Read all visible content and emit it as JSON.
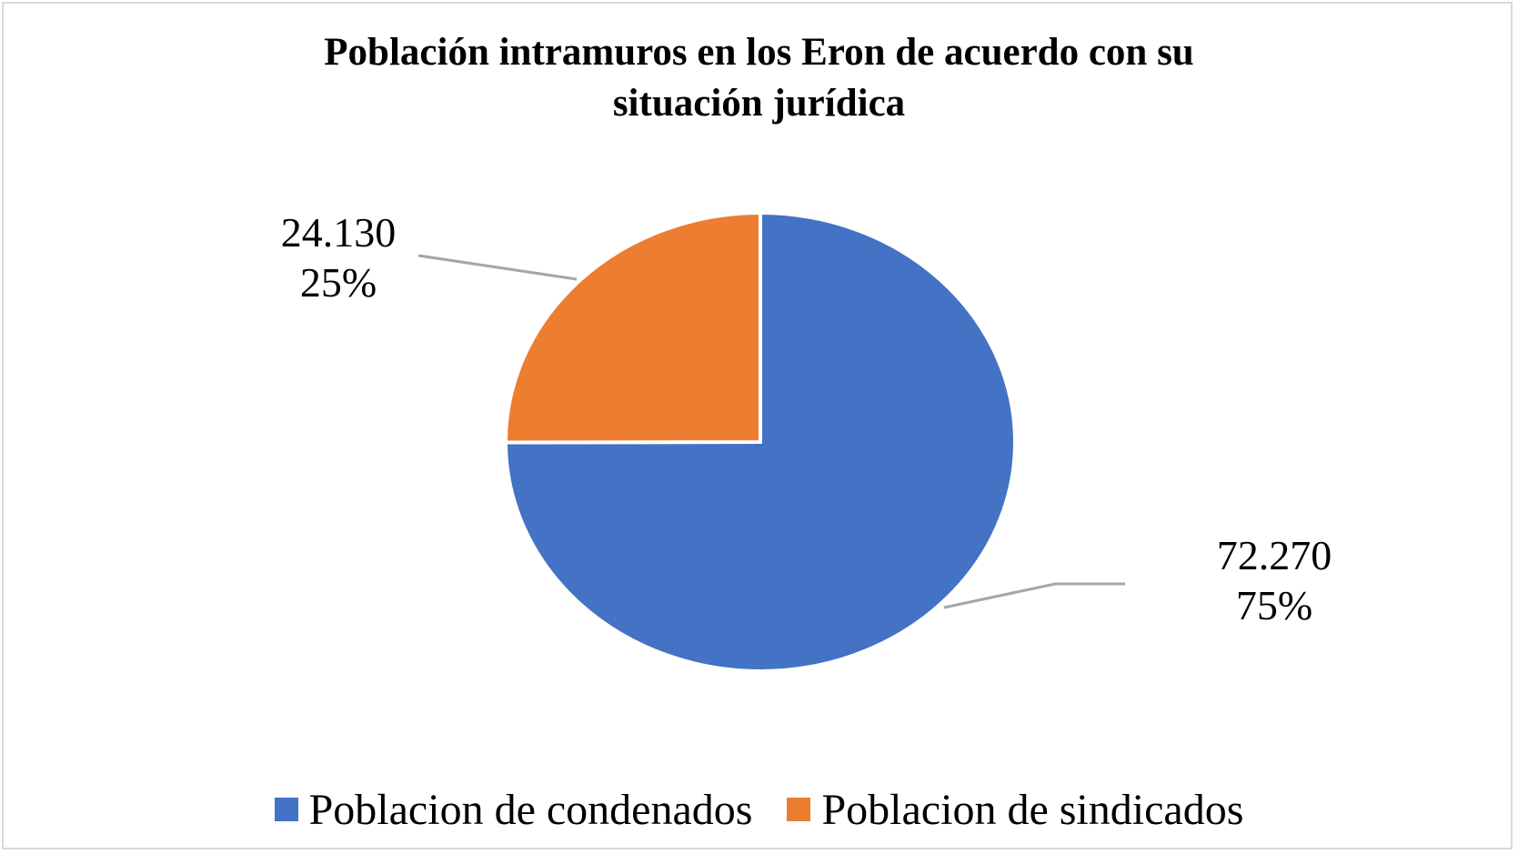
{
  "chart_data": {
    "type": "pie",
    "title_lines": [
      "Población intramuros en los Eron de acuerdo con su",
      "situación jurídica"
    ],
    "slices": [
      {
        "name": "Poblacion de condenados",
        "value": 72270,
        "value_label": "72.270",
        "percent_label": "75%",
        "color": "#4472c4"
      },
      {
        "name": "Poblacion de sindicados",
        "value": 24130,
        "value_label": "24.130",
        "percent_label": "25%",
        "color": "#ed7d31"
      }
    ],
    "legend_position": "bottom"
  }
}
